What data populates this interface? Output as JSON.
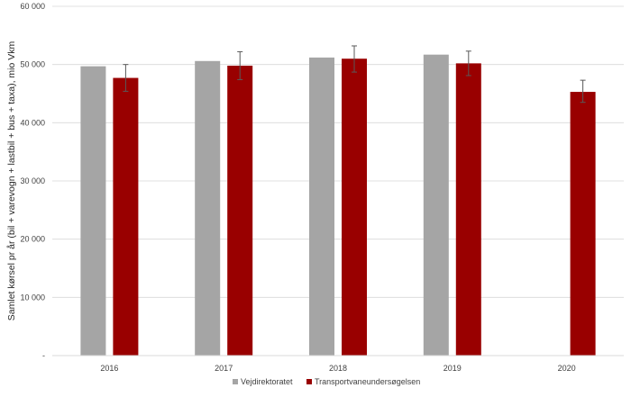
{
  "chart_data": {
    "type": "bar",
    "title": "",
    "xlabel": "",
    "ylabel": "Samlet kørsel pr år (bil + varevogn + lastbil + bus + taxa), mio Vkm",
    "categories": [
      "2016",
      "2017",
      "2018",
      "2019",
      "2020"
    ],
    "ylim": [
      0,
      60000
    ],
    "yticks": [
      {
        "value": 0,
        "label": "-"
      },
      {
        "value": 10000,
        "label": "10 000"
      },
      {
        "value": 20000,
        "label": "20 000"
      },
      {
        "value": 30000,
        "label": "30 000"
      },
      {
        "value": 40000,
        "label": "40 000"
      },
      {
        "value": 50000,
        "label": "50 000"
      },
      {
        "value": 60000,
        "label": "60 000"
      }
    ],
    "grid": true,
    "legend": "bottom",
    "series": [
      {
        "name": "Vejdirektoratet",
        "color": "#a5a5a5",
        "values": [
          49700,
          50600,
          51200,
          51700,
          null
        ]
      },
      {
        "name": "Transportvaneundersøgelsen",
        "color": "#990000",
        "values": [
          47700,
          49800,
          51000,
          50200,
          45300
        ],
        "error_low": [
          45400,
          47400,
          48700,
          48100,
          43500
        ],
        "error_high": [
          50000,
          52200,
          53200,
          52300,
          47300
        ]
      }
    ]
  }
}
